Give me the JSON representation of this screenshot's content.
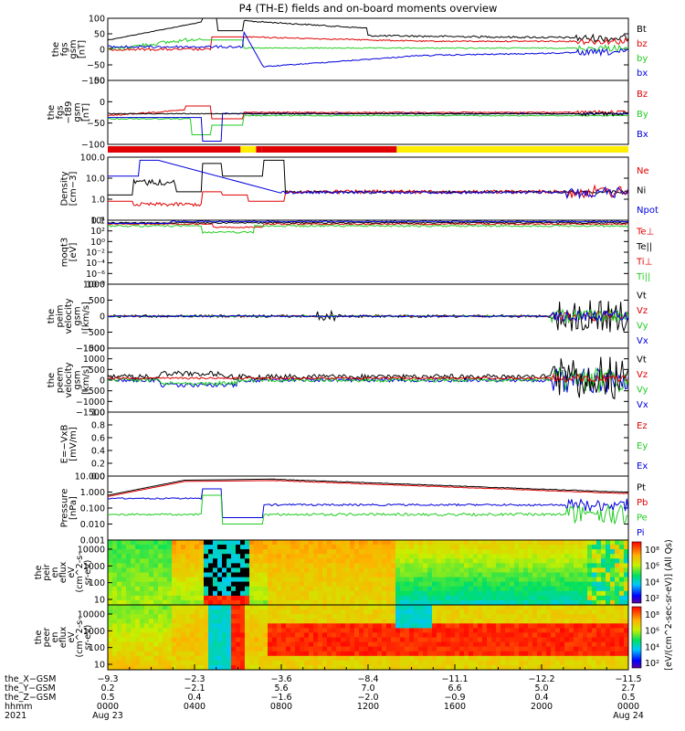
{
  "title": "P4 (TH-E) fields and on-board moments overview",
  "chart_data": [
    {
      "id": "fgs",
      "type": "line",
      "ylabel": [
        "the",
        "fgs",
        "gsm",
        "[nT]"
      ],
      "ylim": [
        -100,
        100
      ],
      "ticks": [
        "100",
        "50",
        "0",
        "−50",
        "−100"
      ],
      "legend": [
        {
          "name": "Bt",
          "color": "#000000"
        },
        {
          "name": "bz",
          "color": "#e00000"
        },
        {
          "name": "by",
          "color": "#22cc22"
        },
        {
          "name": "bx",
          "color": "#0000dd"
        }
      ]
    },
    {
      "id": "fgs_t89",
      "type": "line",
      "ylabel": [
        "the",
        "fgs",
        "−t89",
        "gsm",
        "[nT]"
      ],
      "ylim": [
        -130,
        60
      ],
      "ticks": [
        "50",
        "0",
        "−50",
        "−100"
      ],
      "legend": [
        {
          "name": "Bz",
          "color": "#e00000"
        },
        {
          "name": "By",
          "color": "#22cc22"
        },
        {
          "name": "Bx",
          "color": "#0000dd"
        }
      ]
    },
    {
      "id": "density",
      "type": "line",
      "ylabel": [
        "Density",
        "[cm−3]"
      ],
      "yscale": "log",
      "ylim": [
        0.1,
        100
      ],
      "ticks": [
        "100.0",
        "10.0",
        "1.0",
        "0.1"
      ],
      "legend": [
        {
          "name": "Ne",
          "color": "#e00000"
        },
        {
          "name": "Ni",
          "color": "#000000"
        },
        {
          "name": "Npot",
          "color": "#0000dd"
        }
      ]
    },
    {
      "id": "temps",
      "type": "line",
      "ylabel": [
        "moqt3",
        "[eV]"
      ],
      "yscale": "log",
      "ticks": [
        "10⁴",
        "10²",
        "10⁰",
        "10⁻²",
        "10⁻⁴",
        "10⁻⁶",
        "10⁻⁸"
      ],
      "legend": [
        {
          "name": "Te⊥",
          "color": "#e00000"
        },
        {
          "name": "Te||",
          "color": "#000000"
        },
        {
          "name": "Ti⊥",
          "color": "#e00000"
        },
        {
          "name": "Ti||",
          "color": "#22cc22"
        }
      ]
    },
    {
      "id": "peim_vel",
      "type": "line",
      "ylabel": [
        "the",
        "peim",
        "velocity",
        "gsm",
        "[km/s]"
      ],
      "ylim": [
        -1000,
        1000
      ],
      "ticks": [
        "1000",
        "500",
        "0",
        "−500",
        "−1000"
      ],
      "legend": [
        {
          "name": "Vt",
          "color": "#000000"
        },
        {
          "name": "Vz",
          "color": "#e00000"
        },
        {
          "name": "Vy",
          "color": "#22cc22"
        },
        {
          "name": "Vx",
          "color": "#0000dd"
        }
      ]
    },
    {
      "id": "peem_vel",
      "type": "line",
      "ylabel": [
        "the",
        "peem",
        "velocity",
        "gsm",
        "[km/s]"
      ],
      "ylim": [
        -1500,
        1500
      ],
      "ticks": [
        "1500",
        "1000",
        "500",
        "0",
        "−500",
        "−1000",
        "−1500"
      ],
      "legend": [
        {
          "name": "Vt",
          "color": "#000000"
        },
        {
          "name": "Vz",
          "color": "#e00000"
        },
        {
          "name": "Vy",
          "color": "#22cc22"
        },
        {
          "name": "Vx",
          "color": "#0000dd"
        }
      ]
    },
    {
      "id": "efield",
      "type": "line",
      "ylabel": [
        "E=−VxB",
        "[mV/m]"
      ],
      "ylim": [
        0,
        1
      ],
      "ticks": [
        "1.0",
        "0.8",
        "0.6",
        "0.4",
        "0.2",
        "0.0"
      ],
      "legend": [
        {
          "name": "Ez",
          "color": "#e00000"
        },
        {
          "name": "Ey",
          "color": "#22cc22"
        },
        {
          "name": "Ex",
          "color": "#0000dd"
        }
      ]
    },
    {
      "id": "pressure",
      "type": "line",
      "ylabel": [
        "Pressure",
        "[nPa]"
      ],
      "yscale": "log",
      "ylim": [
        0.001,
        10
      ],
      "ticks": [
        "10.000",
        "1.000",
        "0.100",
        "0.010",
        "0.001"
      ],
      "legend": [
        {
          "name": "Pt",
          "color": "#000000"
        },
        {
          "name": "Pb",
          "color": "#e00000"
        },
        {
          "name": "Pe",
          "color": "#22cc22"
        },
        {
          "name": "Pi",
          "color": "#0000dd"
        }
      ]
    },
    {
      "id": "peir_eflux",
      "type": "heatmap",
      "ylabel": [
        "the",
        "peir",
        "en",
        "eflux",
        "eV",
        "(cm^2-s-",
        "sr-eV)"
      ],
      "yscale": "log",
      "ticks": [
        "10000",
        "1000",
        "100",
        "10"
      ]
    },
    {
      "id": "peer_eflux",
      "type": "heatmap",
      "ylabel": [
        "the",
        "peer",
        "en",
        "eflux",
        "eV",
        "(cm^2-s-",
        "sr-eV)"
      ],
      "yscale": "log",
      "ticks": [
        "10000",
        "1000",
        "100",
        "10"
      ]
    }
  ],
  "colorbar": {
    "label": "[eV/(cm^2-sec-sr-eV)] (All Qs)",
    "ticks": [
      "10⁸",
      "10⁶",
      "10⁴",
      "10²",
      "10⁸",
      "10⁶",
      "10⁴",
      "10²"
    ]
  },
  "mode_bar": [
    {
      "start": 0,
      "end": 0.255,
      "color": "#e00000"
    },
    {
      "start": 0.255,
      "end": 0.285,
      "color": "#ffee00"
    },
    {
      "start": 0.285,
      "end": 0.295,
      "color": "#e00000"
    },
    {
      "start": 0.295,
      "end": 0.555,
      "color": "#e00000"
    },
    {
      "start": 0.555,
      "end": 1.0,
      "color": "#ffee00"
    }
  ],
  "x_axis": {
    "row_labels": [
      "the_X−GSM",
      "the_Y−GSM",
      "the_Z−GSM",
      "hhmm",
      "2021"
    ],
    "columns": [
      [
        "−9.3",
        "0.2",
        "0.5",
        "0000",
        "Aug 23"
      ],
      [
        "−2.3",
        "−2.1",
        "0.4",
        "0400",
        ""
      ],
      [
        "−3.6",
        "5.6",
        "−1.6",
        "0800",
        ""
      ],
      [
        "−8.4",
        "7.0",
        "−2.0",
        "1200",
        ""
      ],
      [
        "−11.1",
        "6.6",
        "−0.9",
        "1600",
        ""
      ],
      [
        "−12.2",
        "5.0",
        "0.4",
        "2000",
        ""
      ],
      [
        "−11.5",
        "2.7",
        "0.5",
        "0000",
        "Aug 24"
      ]
    ]
  }
}
